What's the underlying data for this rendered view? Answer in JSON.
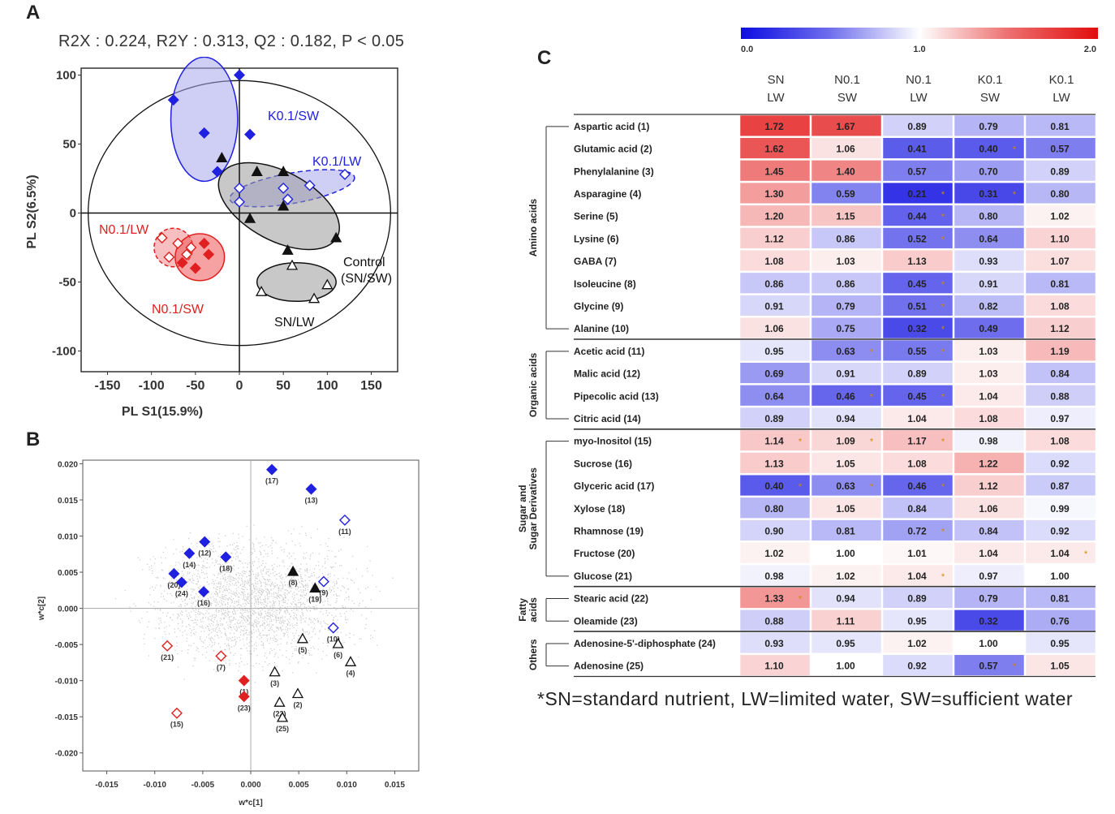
{
  "panels": {
    "a": "A",
    "b": "B",
    "c": "C"
  },
  "panel_a": {
    "stats": "R2X : 0.224, R2Y : 0.313, Q2 : 0.182, P < 0.05",
    "xlabel": "PL S1(15.9%)",
    "ylabel": "PL S2(6.5%)"
  },
  "panel_b": {
    "xlabel": "w*c[1]",
    "ylabel": "w*c[2]"
  },
  "footnote": "*SN=standard nutrient, LW=limited water, SW=sufficient water",
  "colors": {
    "blue": "#2020e0",
    "red": "#e02020",
    "black": "#111111",
    "blueFill": "#a8a8ee",
    "redFill": "#f08a8a",
    "grayFill": "#9a9a9a"
  },
  "chart_data": [
    {
      "type": "scatter",
      "title": "R2X : 0.224, R2Y : 0.313, Q2 : 0.182, P < 0.05",
      "xlabel": "PL S1(15.9%)",
      "ylabel": "PL S2(6.5%)",
      "xlim": [
        -180,
        180
      ],
      "ylim": [
        -115,
        105
      ],
      "xticks": [
        -150,
        -100,
        -50,
        0,
        50,
        100,
        150
      ],
      "yticks": [
        -100,
        -50,
        0,
        50,
        100
      ],
      "groups": [
        {
          "name": "K0.1/SW",
          "color": "#2020e0",
          "marker": "filled-diamond",
          "label_color": "#2020e0",
          "points": [
            [
              -75,
              82
            ],
            [
              0,
              100
            ],
            [
              -40,
              58
            ],
            [
              12,
              57
            ],
            [
              -25,
              30
            ]
          ]
        },
        {
          "name": "K0.1/LW",
          "color": "#2020e0",
          "marker": "open-diamond",
          "label_color": "#2020e0",
          "points": [
            [
              0,
              18
            ],
            [
              0,
              8
            ],
            [
              50,
              18
            ],
            [
              80,
              20
            ],
            [
              120,
              28
            ],
            [
              55,
              10
            ]
          ]
        },
        {
          "name": "N0.1/LW",
          "color": "#e02020",
          "marker": "open-diamond",
          "label_color": "#e02020",
          "points": [
            [
              -88,
              -18
            ],
            [
              -70,
              -22
            ],
            [
              -80,
              -32
            ],
            [
              -60,
              -30
            ],
            [
              -55,
              -25
            ]
          ]
        },
        {
          "name": "N0.1/SW",
          "color": "#e02020",
          "marker": "filled-diamond",
          "label_color": "#e02020",
          "points": [
            [
              -40,
              -22
            ],
            [
              -65,
              -36
            ],
            [
              -50,
              -40
            ],
            [
              -35,
              -30
            ]
          ]
        },
        {
          "name": "Control (SN/SW)",
          "color": "#111111",
          "marker": "filled-triangle",
          "label_color": "#111111",
          "points": [
            [
              -20,
              40
            ],
            [
              20,
              30
            ],
            [
              50,
              30
            ],
            [
              12,
              -4
            ],
            [
              50,
              5
            ],
            [
              110,
              -18
            ],
            [
              55,
              -27
            ]
          ]
        },
        {
          "name": "SN/LW",
          "color": "#111111",
          "marker": "open-triangle",
          "label_color": "#111111",
          "points": [
            [
              25,
              -57
            ],
            [
              60,
              -38
            ],
            [
              85,
              -62
            ],
            [
              100,
              -52
            ]
          ]
        }
      ]
    },
    {
      "type": "scatter",
      "title": "",
      "xlabel": "w*c[1]",
      "ylabel": "w*c[2]",
      "xlim": [
        -0.0175,
        0.0175
      ],
      "ylim": [
        -0.0225,
        0.0205
      ],
      "xticks": [
        "-0.015",
        "-0.010",
        "-0.005",
        "0.000",
        "0.005",
        "0.010",
        "0.015"
      ],
      "yticks": [
        "0.020",
        "0.015",
        "0.010",
        "0.005",
        "0.000",
        "-0.005",
        "-0.010",
        "-0.015",
        "-0.020"
      ],
      "points": [
        {
          "label": "(17)",
          "x": 0.0022,
          "y": 0.0192,
          "color": "#2020e0",
          "marker": "filled-diamond"
        },
        {
          "label": "(13)",
          "x": 0.0063,
          "y": 0.0165,
          "color": "#2020e0",
          "marker": "filled-diamond"
        },
        {
          "label": "(11)",
          "x": 0.0098,
          "y": 0.0122,
          "color": "#2020e0",
          "marker": "open-diamond"
        },
        {
          "label": "(12)",
          "x": -0.0048,
          "y": 0.0092,
          "color": "#2020e0",
          "marker": "filled-diamond"
        },
        {
          "label": "(14)",
          "x": -0.0064,
          "y": 0.0076,
          "color": "#2020e0",
          "marker": "filled-diamond"
        },
        {
          "label": "(18)",
          "x": -0.0026,
          "y": 0.0071,
          "color": "#2020e0",
          "marker": "filled-diamond"
        },
        {
          "label": "(20)",
          "x": -0.008,
          "y": 0.0048,
          "color": "#2020e0",
          "marker": "filled-diamond"
        },
        {
          "label": "(24)",
          "x": -0.0072,
          "y": 0.0036,
          "color": "#2020e0",
          "marker": "filled-diamond"
        },
        {
          "label": "(16)",
          "x": -0.0049,
          "y": 0.0023,
          "color": "#2020e0",
          "marker": "filled-diamond"
        },
        {
          "label": "(8)",
          "x": 0.0044,
          "y": 0.0051,
          "color": "#111111",
          "marker": "filled-triangle"
        },
        {
          "label": "(9)",
          "x": 0.0076,
          "y": 0.0037,
          "color": "#2020e0",
          "marker": "open-diamond"
        },
        {
          "label": "(19)",
          "x": 0.0067,
          "y": 0.0028,
          "color": "#111111",
          "marker": "filled-triangle"
        },
        {
          "label": "(10)",
          "x": 0.0086,
          "y": -0.0027,
          "color": "#2020e0",
          "marker": "open-diamond"
        },
        {
          "label": "(5)",
          "x": 0.0054,
          "y": -0.0042,
          "color": "#111111",
          "marker": "open-triangle"
        },
        {
          "label": "(6)",
          "x": 0.0091,
          "y": -0.0049,
          "color": "#111111",
          "marker": "open-triangle"
        },
        {
          "label": "(4)",
          "x": 0.0104,
          "y": -0.0074,
          "color": "#111111",
          "marker": "open-triangle"
        },
        {
          "label": "(21)",
          "x": -0.0087,
          "y": -0.0052,
          "color": "#e02020",
          "marker": "open-diamond"
        },
        {
          "label": "(7)",
          "x": -0.0031,
          "y": -0.0066,
          "color": "#e02020",
          "marker": "open-diamond"
        },
        {
          "label": "(1)",
          "x": -0.0007,
          "y": -0.01,
          "color": "#e02020",
          "marker": "filled-diamond"
        },
        {
          "label": "(23)",
          "x": -0.0007,
          "y": -0.0122,
          "color": "#e02020",
          "marker": "filled-diamond"
        },
        {
          "label": "(3)",
          "x": 0.0025,
          "y": -0.0088,
          "color": "#111111",
          "marker": "open-triangle"
        },
        {
          "label": "(2)",
          "x": 0.0049,
          "y": -0.0118,
          "color": "#111111",
          "marker": "open-triangle"
        },
        {
          "label": "(22)",
          "x": 0.003,
          "y": -0.013,
          "color": "#111111",
          "marker": "open-triangle"
        },
        {
          "label": "(25)",
          "x": 0.0033,
          "y": -0.0151,
          "color": "#111111",
          "marker": "open-triangle"
        },
        {
          "label": "(15)",
          "x": -0.0077,
          "y": -0.0145,
          "color": "#e02020",
          "marker": "open-diamond"
        }
      ]
    },
    {
      "type": "heatmap",
      "title": "",
      "colorbar": {
        "min": 0.0,
        "mid": 1.0,
        "max": 2.0,
        "labels": [
          "0.0",
          "1.0",
          "2.0"
        ],
        "low_color": "#0000e0",
        "mid_color": "#ffffff",
        "high_color": "#e00000"
      },
      "columns": [
        [
          "SN",
          "LW"
        ],
        [
          "N0.1",
          "SW"
        ],
        [
          "N0.1",
          "LW"
        ],
        [
          "K0.1",
          "SW"
        ],
        [
          "K0.1",
          "LW"
        ]
      ],
      "groups": [
        {
          "name": "Amino acids",
          "label_lines": [
            "Amino acids"
          ],
          "start": 0,
          "end": 9
        },
        {
          "name": "Organic acids",
          "label_lines": [
            "Organic acids"
          ],
          "start": 10,
          "end": 13
        },
        {
          "name": "Sugar and Sugar Derivatives",
          "label_lines": [
            "Sugar and",
            "Sugar Derivatives"
          ],
          "start": 14,
          "end": 20
        },
        {
          "name": "Fatty acids",
          "label_lines": [
            "Fatty",
            "acids"
          ],
          "start": 21,
          "end": 22
        },
        {
          "name": "Others",
          "label_lines": [
            "Others"
          ],
          "start": 23,
          "end": 24
        }
      ],
      "rows": [
        {
          "label": "Aspartic acid (1)",
          "values": [
            1.72,
            1.67,
            0.89,
            0.79,
            0.81
          ],
          "sig": [
            false,
            false,
            false,
            false,
            false
          ]
        },
        {
          "label": "Glutamic acid (2)",
          "values": [
            1.62,
            1.06,
            0.41,
            0.4,
            0.57
          ],
          "sig": [
            false,
            false,
            false,
            true,
            false
          ]
        },
        {
          "label": "Phenylalanine (3)",
          "values": [
            1.45,
            1.4,
            0.57,
            0.7,
            0.89
          ],
          "sig": [
            false,
            false,
            false,
            false,
            false
          ]
        },
        {
          "label": "Asparagine (4)",
          "values": [
            1.3,
            0.59,
            0.21,
            0.31,
            0.8
          ],
          "sig": [
            false,
            false,
            true,
            true,
            false
          ]
        },
        {
          "label": "Serine (5)",
          "values": [
            1.2,
            1.15,
            0.44,
            0.8,
            1.02
          ],
          "sig": [
            false,
            false,
            true,
            false,
            false
          ]
        },
        {
          "label": "Lysine (6)",
          "values": [
            1.12,
            0.86,
            0.52,
            0.64,
            1.1
          ],
          "sig": [
            false,
            false,
            true,
            false,
            false
          ]
        },
        {
          "label": "GABA (7)",
          "values": [
            1.08,
            1.03,
            1.13,
            0.93,
            1.07
          ],
          "sig": [
            false,
            false,
            false,
            false,
            false
          ]
        },
        {
          "label": "Isoleucine (8)",
          "values": [
            0.86,
            0.86,
            0.45,
            0.91,
            0.81
          ],
          "sig": [
            false,
            false,
            true,
            false,
            false
          ]
        },
        {
          "label": "Glycine (9)",
          "values": [
            0.91,
            0.79,
            0.51,
            0.82,
            1.08
          ],
          "sig": [
            false,
            false,
            true,
            false,
            false
          ]
        },
        {
          "label": "Alanine (10)",
          "values": [
            1.06,
            0.75,
            0.32,
            0.49,
            1.12
          ],
          "sig": [
            false,
            false,
            true,
            false,
            false
          ]
        },
        {
          "label": "Acetic acid (11)",
          "values": [
            0.95,
            0.63,
            0.55,
            1.03,
            1.19
          ],
          "sig": [
            false,
            true,
            true,
            false,
            false
          ]
        },
        {
          "label": "Malic acid (12)",
          "values": [
            0.69,
            0.91,
            0.89,
            1.03,
            0.84
          ],
          "sig": [
            false,
            false,
            false,
            false,
            false
          ]
        },
        {
          "label": "Pipecolic acid (13)",
          "values": [
            0.64,
            0.46,
            0.45,
            1.04,
            0.88
          ],
          "sig": [
            false,
            true,
            true,
            false,
            false
          ]
        },
        {
          "label": "Citric acid (14)",
          "values": [
            0.89,
            0.94,
            1.04,
            1.08,
            0.97
          ],
          "sig": [
            false,
            false,
            false,
            false,
            false
          ]
        },
        {
          "label": "myo-Inositol (15)",
          "values": [
            1.14,
            1.09,
            1.17,
            0.98,
            1.08
          ],
          "sig": [
            true,
            true,
            true,
            false,
            false
          ]
        },
        {
          "label": "Sucrose (16)",
          "values": [
            1.13,
            1.05,
            1.08,
            1.22,
            0.92
          ],
          "sig": [
            false,
            false,
            false,
            false,
            false
          ]
        },
        {
          "label": "Glyceric acid (17)",
          "values": [
            0.4,
            0.63,
            0.46,
            1.12,
            0.87
          ],
          "sig": [
            true,
            true,
            true,
            false,
            false
          ]
        },
        {
          "label": "Xylose (18)",
          "values": [
            0.8,
            1.05,
            0.84,
            1.06,
            0.99
          ],
          "sig": [
            false,
            false,
            false,
            false,
            false
          ]
        },
        {
          "label": "Rhamnose (19)",
          "values": [
            0.9,
            0.81,
            0.72,
            0.84,
            0.92
          ],
          "sig": [
            false,
            false,
            true,
            false,
            false
          ]
        },
        {
          "label": "Fructose (20)",
          "values": [
            1.02,
            1.0,
            1.01,
            1.04,
            1.04
          ],
          "sig": [
            false,
            false,
            false,
            false,
            true
          ]
        },
        {
          "label": "Glucose (21)",
          "values": [
            0.98,
            1.02,
            1.04,
            0.97,
            1.0
          ],
          "sig": [
            false,
            false,
            true,
            false,
            false
          ]
        },
        {
          "label": "Stearic acid (22)",
          "values": [
            1.33,
            0.94,
            0.89,
            0.79,
            0.81
          ],
          "sig": [
            true,
            false,
            false,
            false,
            false
          ]
        },
        {
          "label": "Oleamide (23)",
          "values": [
            0.88,
            1.11,
            0.95,
            0.32,
            0.76
          ],
          "sig": [
            false,
            false,
            false,
            false,
            false
          ]
        },
        {
          "label": "Adenosine-5'-diphosphate (24)",
          "values": [
            0.93,
            0.95,
            1.02,
            1.0,
            0.95
          ],
          "sig": [
            false,
            false,
            false,
            false,
            false
          ]
        },
        {
          "label": "Adenosine (25)",
          "values": [
            1.1,
            1.0,
            0.92,
            0.57,
            1.05
          ],
          "sig": [
            false,
            false,
            false,
            true,
            false
          ]
        }
      ]
    }
  ]
}
